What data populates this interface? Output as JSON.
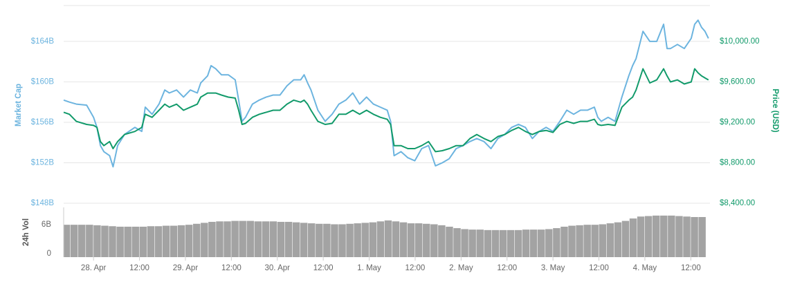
{
  "chart_data": [
    {
      "type": "line",
      "ylabel": "Market Cap",
      "y2label": "Price (USD)",
      "x": [
        -7.8,
        -6.3,
        -4.5,
        -1.8,
        0,
        0.9,
        1.8,
        2.7,
        4.2,
        5.1,
        6.3,
        8.1,
        10.8,
        12.6,
        13.5,
        15.3,
        17.1,
        18.6,
        19.8,
        21.7,
        23.5,
        25.3,
        27.1,
        28.0,
        29.8,
        30.7,
        31.9,
        33.4,
        35.2,
        37.0,
        37.9,
        38.8,
        39.7,
        41.5,
        43.3,
        45.1,
        46.9,
        48.7,
        50.5,
        52.3,
        54.1,
        55.0,
        55.9,
        56.8,
        58.6,
        60.5,
        62.3,
        64.1,
        65.9,
        67.7,
        69.5,
        71.3,
        73.1,
        74.9,
        76.7,
        77.6,
        78.5,
        80.3,
        82.1,
        83.9,
        85.7,
        87.5,
        89.3,
        91.1,
        92.9,
        94.7,
        96.5,
        98.3,
        100.1,
        102.0,
        103.8,
        105.6,
        107.4,
        109.2,
        111.0,
        112.8,
        114.6,
        116.4,
        118.2,
        120.0,
        121.8,
        123.6,
        125.4,
        127.2,
        129.0,
        130.8,
        131.7,
        132.6,
        134.4,
        136.2,
        138.0,
        139.8,
        140.8,
        141.7,
        143.5,
        145.3,
        147.1,
        148.9,
        149.8,
        150.7,
        152.5,
        154.3,
        156.1,
        157.0,
        157.9,
        158.8,
        159.7,
        160.6
      ],
      "xlim": [
        -7.8,
        161
      ],
      "ylim": [
        148,
        167.55
      ],
      "yticks": [
        {
          "value": 148,
          "label": "$148B"
        },
        {
          "value": 152,
          "label": "$152B"
        },
        {
          "value": 156,
          "label": "$156B"
        },
        {
          "value": 160,
          "label": "$160B"
        },
        {
          "value": 164,
          "label": "$164B"
        }
      ],
      "y2lim": [
        8400,
        10356
      ],
      "y2ticks": [
        {
          "value": 8400,
          "label": "$8,400.00"
        },
        {
          "value": 8800,
          "label": "$8,800.00"
        },
        {
          "value": 9200,
          "label": "$9,200.00"
        },
        {
          "value": 9600,
          "label": "$9,600.00"
        },
        {
          "value": 10000,
          "label": "$10,000.00"
        }
      ],
      "grid": true,
      "series": [
        {
          "color": "#6cb4df",
          "axis": "y",
          "values": [
            158.2,
            158.0,
            157.8,
            157.7,
            156.5,
            155.5,
            153.7,
            153.1,
            152.7,
            151.6,
            153.7,
            154.8,
            155.5,
            155.1,
            157.5,
            156.8,
            157.8,
            159.2,
            158.9,
            159.2,
            158.5,
            159.2,
            158.9,
            159.9,
            160.6,
            161.6,
            161.3,
            160.7,
            160.7,
            160.2,
            158.2,
            156.1,
            156.5,
            157.8,
            158.2,
            158.5,
            158.7,
            158.7,
            159.6,
            160.2,
            160.2,
            160.7,
            159.9,
            159.2,
            157.2,
            156.1,
            156.8,
            157.8,
            158.2,
            158.9,
            157.8,
            158.5,
            157.8,
            157.5,
            157.2,
            156.1,
            152.7,
            153.1,
            152.5,
            152.2,
            153.4,
            153.7,
            151.7,
            152.0,
            152.4,
            153.4,
            153.7,
            154.1,
            154.4,
            154.1,
            153.4,
            154.4,
            154.8,
            155.5,
            155.8,
            155.5,
            154.4,
            155.1,
            155.5,
            155.1,
            156.1,
            157.2,
            156.8,
            157.2,
            157.2,
            157.5,
            156.5,
            156.1,
            156.5,
            156.1,
            158.5,
            160.6,
            161.6,
            162.3,
            165.0,
            164.0,
            164.0,
            165.7,
            163.3,
            163.3,
            163.7,
            163.3,
            164.3,
            165.7,
            166.1,
            165.4,
            165.0,
            164.3
          ]
        },
        {
          "color": "#119a6a",
          "axis": "y2",
          "values": [
            9300,
            9280,
            9210,
            9180,
            9170,
            9150,
            9010,
            8970,
            9010,
            8940,
            9010,
            9080,
            9110,
            9150,
            9280,
            9250,
            9320,
            9380,
            9350,
            9380,
            9320,
            9350,
            9380,
            9450,
            9490,
            9490,
            9490,
            9470,
            9450,
            9440,
            9320,
            9180,
            9190,
            9250,
            9280,
            9300,
            9320,
            9320,
            9380,
            9420,
            9400,
            9420,
            9380,
            9320,
            9210,
            9180,
            9190,
            9280,
            9280,
            9320,
            9280,
            9320,
            9280,
            9250,
            9230,
            9180,
            8970,
            8970,
            8940,
            8940,
            8970,
            9010,
            8910,
            8920,
            8940,
            8970,
            8970,
            9040,
            9080,
            9040,
            9010,
            9060,
            9080,
            9120,
            9150,
            9110,
            9080,
            9110,
            9120,
            9100,
            9180,
            9210,
            9190,
            9210,
            9210,
            9230,
            9180,
            9170,
            9180,
            9170,
            9350,
            9420,
            9450,
            9520,
            9730,
            9590,
            9620,
            9730,
            9660,
            9600,
            9620,
            9580,
            9600,
            9730,
            9690,
            9660,
            9640,
            9620
          ]
        }
      ]
    },
    {
      "type": "bar",
      "ylabel": "24h Vol",
      "color": "#a3a3a3",
      "x": [
        -7,
        -5,
        -3,
        -1,
        1,
        3,
        5,
        7,
        9,
        11,
        13,
        15,
        17,
        19,
        21,
        23,
        25,
        27,
        29,
        31,
        33,
        35,
        37,
        39,
        41,
        43,
        45,
        47,
        49,
        51,
        53,
        55,
        57,
        59,
        61,
        63,
        65,
        67,
        69,
        71,
        73,
        75,
        77,
        79,
        81,
        83,
        85,
        87,
        89,
        91,
        93,
        95,
        97,
        99,
        101,
        103,
        105,
        107,
        109,
        111,
        113,
        115,
        117,
        119,
        121,
        123,
        125,
        127,
        129,
        131,
        133,
        135,
        137,
        139,
        141,
        143,
        145,
        147,
        149,
        151,
        153,
        155,
        157,
        159
      ],
      "values": [
        6.7,
        6.7,
        6.7,
        6.7,
        6.6,
        6.5,
        6.4,
        6.3,
        6.3,
        6.3,
        6.3,
        6.4,
        6.4,
        6.5,
        6.5,
        6.6,
        6.7,
        6.9,
        7.1,
        7.3,
        7.4,
        7.4,
        7.5,
        7.5,
        7.5,
        7.4,
        7.4,
        7.4,
        7.3,
        7.3,
        7.2,
        7.1,
        7.0,
        6.9,
        6.9,
        6.8,
        6.8,
        6.9,
        7.0,
        7.1,
        7.2,
        7.4,
        7.6,
        7.4,
        7.2,
        7.0,
        7.0,
        6.9,
        6.8,
        6.6,
        6.3,
        6.0,
        5.8,
        5.7,
        5.7,
        5.6,
        5.6,
        5.6,
        5.6,
        5.6,
        5.7,
        5.7,
        5.7,
        5.8,
        6.0,
        6.3,
        6.5,
        6.6,
        6.7,
        6.7,
        6.8,
        7.0,
        7.2,
        7.5,
        8.0,
        8.4,
        8.5,
        8.6,
        8.6,
        8.6,
        8.5,
        8.4,
        8.3,
        8.3
      ],
      "xlim": [
        -7.8,
        161
      ],
      "ylim": [
        0,
        10.3
      ],
      "yticks": [
        0,
        {
          "value": 6,
          "label": "6B"
        }
      ],
      "xticks": [
        {
          "value": 0,
          "label": "28. Apr"
        },
        {
          "value": 12,
          "label": "12:00"
        },
        {
          "value": 24,
          "label": "29. Apr"
        },
        {
          "value": 36,
          "label": "12:00"
        },
        {
          "value": 48,
          "label": "30. Apr"
        },
        {
          "value": 60,
          "label": "12:00"
        },
        {
          "value": 72,
          "label": "1. May"
        },
        {
          "value": 84,
          "label": "12:00"
        },
        {
          "value": 96,
          "label": "2. May"
        },
        {
          "value": 108,
          "label": "12:00"
        },
        {
          "value": 120,
          "label": "3. May"
        },
        {
          "value": 132,
          "label": "12:00"
        },
        {
          "value": 144,
          "label": "4. May"
        },
        {
          "value": 156,
          "label": "12:00"
        }
      ]
    }
  ]
}
